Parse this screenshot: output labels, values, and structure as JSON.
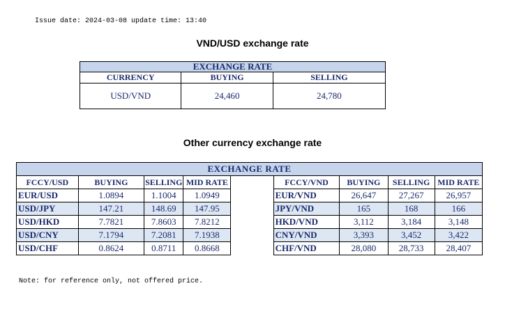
{
  "issue": "Issue date: 2024-03-08 update time: 13:40",
  "heading_usd": "VND/USD exchange rate",
  "heading_other": "Other currency exchange rate",
  "t1": {
    "band": "EXCHANGE RATE",
    "headers": [
      "CURRENCY",
      "BUYING",
      "SELLING"
    ],
    "row": [
      "USD/VND",
      "24,460",
      "24,780"
    ]
  },
  "t2": {
    "band": "EXCHANGE  RATE",
    "left_headers": [
      "FCCY/USD",
      "BUYING",
      "SELLING",
      "MID RATE"
    ],
    "right_headers": [
      "FCCY/VND",
      "BUYING",
      "SELLING",
      "MID RATE"
    ],
    "left_rows": [
      [
        "EUR/USD",
        "1.0894",
        "1.1004",
        "1.0949"
      ],
      [
        "USD/JPY",
        "147.21",
        "148.69",
        "147.95"
      ],
      [
        "USD/HKD",
        "7.7821",
        "7.8603",
        "7.8212"
      ],
      [
        "USD/CNY",
        "7.1794",
        "7.2081",
        "7.1938"
      ],
      [
        "USD/CHF",
        "0.8624",
        "0.8711",
        "0.8668"
      ]
    ],
    "right_rows": [
      [
        "EUR/VND",
        "26,647",
        "27,267",
        "26,957"
      ],
      [
        "JPY/VND",
        "165",
        "168",
        "166"
      ],
      [
        "HKD/VND",
        "3,112",
        "3,184",
        "3,148"
      ],
      [
        "CNY/VND",
        "3,393",
        "3,452",
        "3,422"
      ],
      [
        "CHF/VND",
        "28,080",
        "28,733",
        "28,407"
      ]
    ]
  },
  "note": "Note: for reference only, not offered price."
}
